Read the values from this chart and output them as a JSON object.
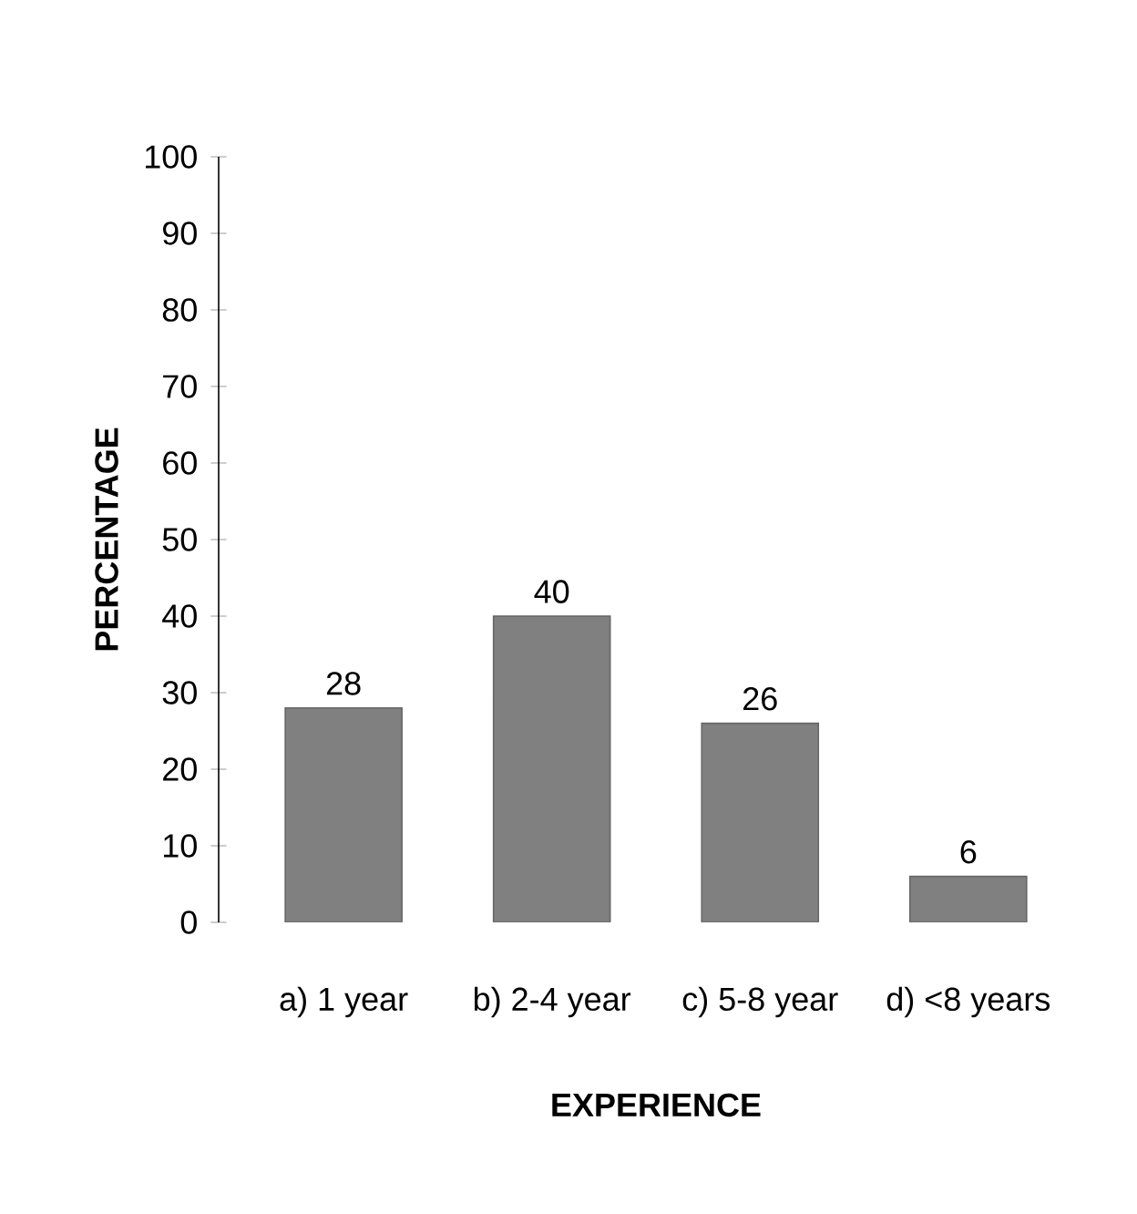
{
  "chart_data": {
    "type": "bar",
    "xlabel": "EXPERIENCE",
    "ylabel": "PERCENTAGE",
    "categories": [
      "a)   1 year",
      "b)   2-4 year",
      "c)   5-8 year",
      "d)   <8 years"
    ],
    "values": [
      28,
      40,
      26,
      6
    ],
    "color": "#808080",
    "ylim": [
      0,
      100
    ],
    "yticks": [
      0,
      10,
      20,
      30,
      40,
      50,
      60,
      70,
      80,
      90,
      100
    ],
    "data_labels": true,
    "grid": false
  }
}
